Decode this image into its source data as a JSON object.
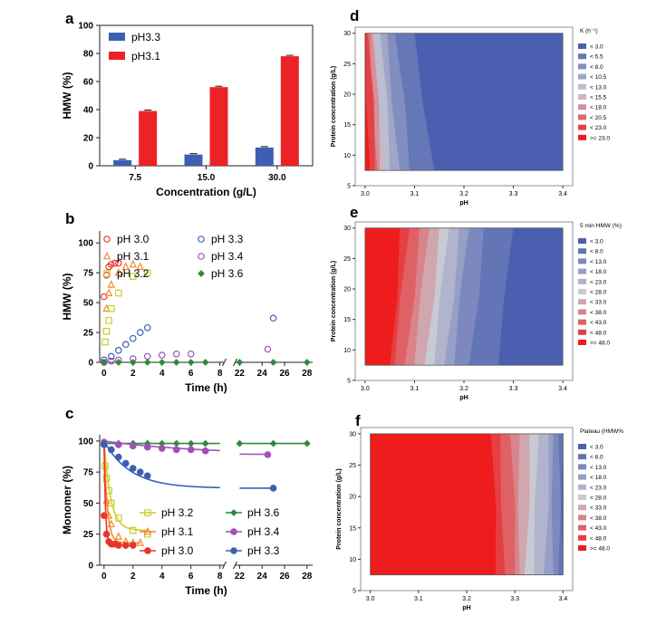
{
  "chart_data": [
    {
      "id": "a",
      "type": "bar",
      "panel_label": "a",
      "categories": [
        "7.5",
        "15.0",
        "30.0"
      ],
      "series": [
        {
          "name": "pH3.3",
          "color": "#3d5fb3",
          "values": [
            4,
            8,
            13
          ]
        },
        {
          "name": "pH3.1",
          "color": "#ec2226",
          "values": [
            39,
            56,
            78
          ]
        }
      ],
      "xlabel": "Concentration (g/L)",
      "ylabel": "HMW (%)",
      "ylim": [
        0,
        100
      ],
      "yticks": [
        "0",
        "20",
        "40",
        "60",
        "80",
        "100"
      ],
      "legend": "top-left"
    },
    {
      "id": "b",
      "type": "scatter",
      "panel_label": "b",
      "xlabel": "Time (h)",
      "ylabel": "HMW (%)",
      "ylim": [
        0,
        110
      ],
      "yticks": [
        "0",
        "25",
        "50",
        "75",
        "100"
      ],
      "xticks_left": [
        "0",
        "2",
        "4",
        "6",
        "8"
      ],
      "xticks_right": [
        "22",
        "24",
        "26",
        "28"
      ],
      "x_break": [
        8,
        22
      ],
      "series": [
        {
          "name": "pH 3.0",
          "color": "#e8352b",
          "marker": "circle",
          "x": [
            0,
            0.17,
            0.33,
            0.5,
            0.75,
            1.0
          ],
          "y": [
            55,
            73,
            80,
            82,
            83,
            83
          ]
        },
        {
          "name": "pH 3.1",
          "color": "#f08a2a",
          "marker": "triangle",
          "x": [
            0.17,
            0.33,
            0.5,
            1.0,
            1.5,
            2.0,
            2.5
          ],
          "y": [
            45,
            58,
            65,
            75,
            80,
            82,
            80
          ]
        },
        {
          "name": "pH 3.2",
          "color": "#cccc30",
          "marker": "square",
          "x": [
            0.08,
            0.17,
            0.33,
            0.5,
            1.0,
            2.0,
            3.0
          ],
          "y": [
            17,
            26,
            35,
            45,
            58,
            72,
            75
          ]
        },
        {
          "name": "pH 3.3",
          "color": "#3d5fb3",
          "marker": "circle",
          "x": [
            0,
            0.5,
            1.0,
            1.5,
            2.0,
            2.5,
            3.0,
            25
          ],
          "y": [
            2,
            5,
            10,
            15,
            20,
            25,
            29,
            37
          ]
        },
        {
          "name": "pH 3.4",
          "color": "#a050b8",
          "marker": "circle",
          "x": [
            0,
            0.5,
            1.0,
            2.0,
            3.0,
            4.0,
            5.0,
            6.0,
            24.5
          ],
          "y": [
            0,
            1,
            2,
            3,
            5,
            6,
            7,
            7,
            11
          ]
        },
        {
          "name": "pH 3.6",
          "color": "#2e8b3a",
          "marker": "diamond",
          "x": [
            0,
            1,
            2,
            3,
            4,
            5,
            6,
            7,
            22,
            25,
            28
          ],
          "y": [
            0,
            0,
            0,
            0,
            0,
            0,
            0,
            0,
            0,
            0,
            0
          ]
        }
      ],
      "legend": "top"
    },
    {
      "id": "c",
      "type": "line",
      "panel_label": "c",
      "xlabel": "Time (h)",
      "ylabel": "Monomer (%)",
      "ylim": [
        0,
        105
      ],
      "yticks": [
        "0",
        "25",
        "50",
        "75",
        "100"
      ],
      "xticks_left": [
        "0",
        "2",
        "4",
        "6",
        "8"
      ],
      "xticks_right": [
        "22",
        "24",
        "26",
        "28"
      ],
      "x_break": [
        8,
        22
      ],
      "series": [
        {
          "name": "pH 3.2",
          "color": "#cccc30",
          "marker": "square",
          "x": [
            0.08,
            0.17,
            0.33,
            0.5,
            1.0,
            2.0,
            3.0
          ],
          "y": [
            80,
            70,
            60,
            50,
            38,
            28,
            25
          ],
          "plateau": 28,
          "start": 100,
          "rate": 2.2,
          "end": 3.0
        },
        {
          "name": "pH 3.1",
          "color": "#f08a2a",
          "marker": "triangle",
          "x": [
            0.17,
            0.33,
            0.5,
            1.0,
            1.5,
            2.0,
            2.5
          ],
          "y": [
            52,
            40,
            33,
            23,
            19,
            18,
            18
          ],
          "plateau": 18,
          "start": 100,
          "rate": 4.5,
          "end": 2.5
        },
        {
          "name": "pH 3.0",
          "color": "#e8352b",
          "marker": "circle",
          "x": [
            0,
            0.17,
            0.33,
            0.5,
            0.75,
            1.0,
            1.5,
            2.0
          ],
          "y": [
            40,
            25,
            19,
            17,
            17,
            16,
            16,
            16
          ],
          "plateau": 16,
          "start": 100,
          "rate": 10,
          "end": 2.0
        },
        {
          "name": "pH 3.6",
          "color": "#2e8b3a",
          "marker": "diamond",
          "x": [
            0,
            1,
            2,
            3,
            4,
            5,
            6,
            7,
            22,
            25,
            28
          ],
          "y": [
            98,
            98,
            98,
            98,
            98,
            98,
            98,
            98,
            98,
            98,
            98
          ],
          "plateau": 98,
          "start": 98,
          "rate": 1,
          "end": 28
        },
        {
          "name": "pH 3.4",
          "color": "#a050b8",
          "marker": "circle",
          "x": [
            0,
            1,
            2,
            3,
            4,
            5,
            6,
            7,
            24.5
          ],
          "y": [
            99,
            97,
            96,
            95,
            94,
            93,
            93,
            92,
            89
          ],
          "plateau": 89,
          "start": 100,
          "rate": 0.15,
          "end": 24.5
        },
        {
          "name": "pH 3.3",
          "color": "#3d5fb3",
          "marker": "circle",
          "x": [
            0,
            0.5,
            1.0,
            1.5,
            2.0,
            2.5,
            3.0,
            25
          ],
          "y": [
            97,
            93,
            87,
            82,
            78,
            75,
            72,
            62
          ],
          "plateau": 62,
          "start": 100,
          "rate": 0.55,
          "end": 25
        }
      ],
      "legend": "bottom-center"
    },
    {
      "id": "d",
      "type": "heatmap",
      "panel_label": "d",
      "xlabel": "pH",
      "ylabel": "Protein concentration (g/L)",
      "xticks": [
        "3.0",
        "3.1",
        "3.2",
        "3.3",
        "3.4"
      ],
      "yticks": [
        "5",
        "10",
        "15",
        "20",
        "25",
        "30"
      ],
      "xlim": [
        2.98,
        3.42
      ],
      "ylim": [
        5,
        31
      ],
      "colorbar_title": "K (h⁻¹)",
      "colorbar_labels": [
        "< 3.0",
        "< 5.5",
        "< 8.0",
        "< 10.5",
        "< 13.0",
        "< 15.5",
        "< 18.0",
        "< 20.5",
        "< 23.0",
        ">= 23.0"
      ],
      "contours_ph_at_conc_7_5": [
        3.14,
        3.09,
        3.07,
        3.05,
        3.04,
        3.03,
        3.025,
        3.02,
        3.01
      ],
      "contours_ph_at_conc_30": [
        3.1,
        3.06,
        3.045,
        3.03,
        3.02,
        3.015,
        3.01,
        3.005,
        3.002
      ]
    },
    {
      "id": "e",
      "type": "heatmap",
      "panel_label": "e",
      "xlabel": "pH",
      "ylabel": "Protein concentration (g/L)",
      "xticks": [
        "3.0",
        "3.1",
        "3.2",
        "3.3",
        "3.4"
      ],
      "yticks": [
        "5",
        "10",
        "15",
        "20",
        "25",
        "30"
      ],
      "xlim": [
        2.98,
        3.42
      ],
      "ylim": [
        5,
        31
      ],
      "colorbar_title": "5 min HMW (%)",
      "colorbar_labels": [
        "< 3.0",
        "< 8.0",
        "< 13.0",
        "< 18.0",
        "< 23.0",
        "< 28.0",
        "< 33.0",
        "< 38.0",
        "< 43.0",
        "< 48.0",
        ">= 48.0"
      ],
      "contours_ph_at_conc_7_5": [
        3.27,
        3.21,
        3.18,
        3.16,
        3.14,
        3.12,
        3.1,
        3.08,
        3.06,
        3.05
      ],
      "contours_ph_at_conc_30": [
        3.3,
        3.24,
        3.21,
        3.19,
        3.17,
        3.15,
        3.13,
        3.11,
        3.09,
        3.07
      ]
    },
    {
      "id": "f",
      "type": "heatmap",
      "panel_label": "f",
      "xlabel": "pH",
      "ylabel": "Protein concentration (g/L)",
      "xticks": [
        "3.0",
        "3.1",
        "3.2",
        "3.3",
        "3.4"
      ],
      "yticks": [
        "5",
        "10",
        "15",
        "20",
        "25",
        "30"
      ],
      "xlim": [
        2.98,
        3.42
      ],
      "ylim": [
        5,
        31
      ],
      "colorbar_title": "Plateau (HMW%",
      "colorbar_labels": [
        "< 3.0",
        "< 8.0",
        "< 13.0",
        "< 18.0",
        "< 23.0",
        "< 28.0",
        "< 33.0",
        "< 38.0",
        "< 43.0",
        "< 48.0",
        ">= 48.0"
      ],
      "contours_ph_at_conc_7_5": [
        3.4,
        3.39,
        3.38,
        3.36,
        3.34,
        3.32,
        3.31,
        3.3,
        3.28,
        3.26
      ],
      "contours_ph_at_conc_30": [
        3.4,
        3.39,
        3.38,
        3.37,
        3.35,
        3.33,
        3.31,
        3.29,
        3.27,
        3.25
      ]
    }
  ]
}
